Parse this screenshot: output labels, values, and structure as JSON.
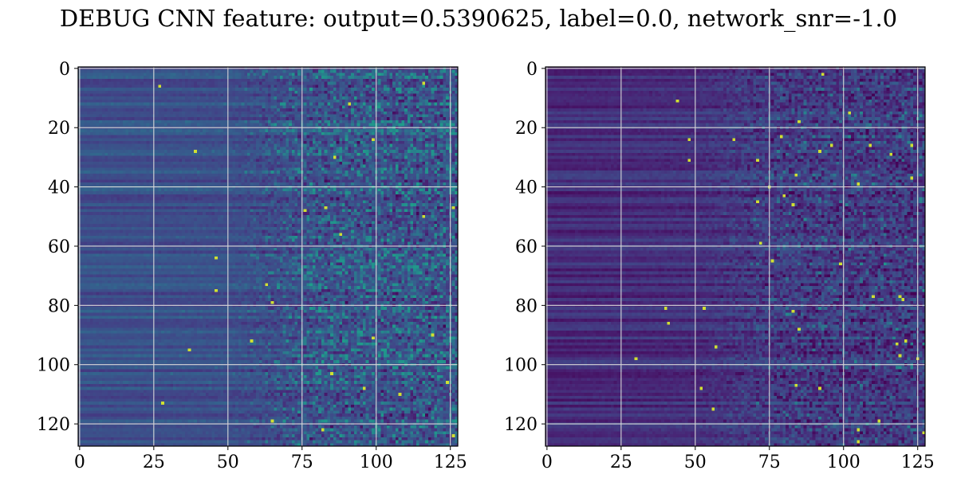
{
  "title": "DEBUG CNN feature: output=0.5390625, label=0.0, network_snr=-1.0",
  "chart_data": [
    {
      "type": "heatmap",
      "colormap": "viridis",
      "rows": 128,
      "cols": 128,
      "xlim": [
        -0.5,
        127.5
      ],
      "ylim": [
        127.5,
        -0.5
      ],
      "xticks": [
        0,
        25,
        50,
        75,
        100,
        125
      ],
      "yticks": [
        0,
        20,
        40,
        60,
        80,
        100,
        120
      ],
      "xtick_labels": [
        "0",
        "25",
        "50",
        "75",
        "100",
        "125"
      ],
      "ytick_labels": [
        "0",
        "20",
        "40",
        "60",
        "80",
        "100",
        "120"
      ],
      "grid": true,
      "column_profile": [
        {
          "col": 0,
          "mean": 0.3,
          "spread": 0.03
        },
        {
          "col": 50,
          "mean": 0.3,
          "spread": 0.06
        },
        {
          "col": 64,
          "mean": 0.3,
          "spread": 0.18
        },
        {
          "col": 80,
          "mean": 0.32,
          "spread": 0.28
        },
        {
          "col": 127,
          "mean": 0.32,
          "spread": 0.34
        }
      ]
    },
    {
      "type": "heatmap",
      "colormap": "viridis",
      "rows": 128,
      "cols": 128,
      "xlim": [
        -0.5,
        127.5
      ],
      "ylim": [
        127.5,
        -0.5
      ],
      "xticks": [
        0,
        25,
        50,
        75,
        100,
        125
      ],
      "yticks": [
        0,
        20,
        40,
        60,
        80,
        100,
        120
      ],
      "xtick_labels": [
        "0",
        "25",
        "50",
        "75",
        "100",
        "125"
      ],
      "ytick_labels": [
        "0",
        "20",
        "40",
        "60",
        "80",
        "100",
        "120"
      ],
      "grid": true,
      "column_profile": [
        {
          "col": 0,
          "mean": 0.15,
          "spread": 0.03
        },
        {
          "col": 50,
          "mean": 0.17,
          "spread": 0.06
        },
        {
          "col": 64,
          "mean": 0.2,
          "spread": 0.15
        },
        {
          "col": 80,
          "mean": 0.22,
          "spread": 0.26
        },
        {
          "col": 127,
          "mean": 0.22,
          "spread": 0.3
        }
      ]
    }
  ]
}
